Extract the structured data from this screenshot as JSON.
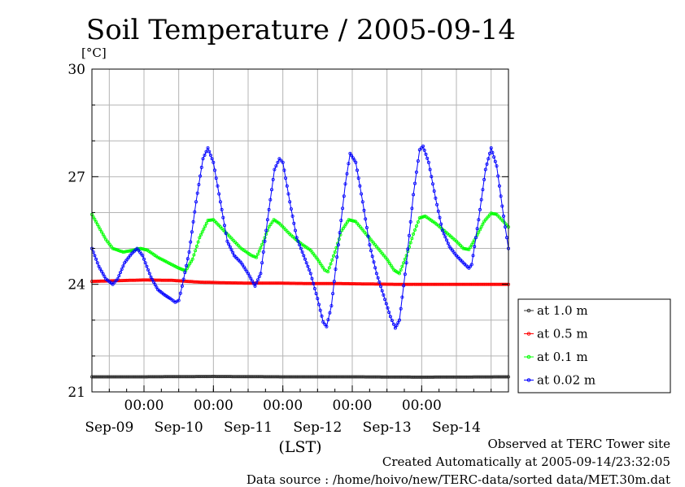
{
  "chart_data": {
    "type": "line",
    "title": "Soil Temperature / 2005-09-14",
    "ylabel": "[°C]",
    "xlabel": "(LST)",
    "ylim": [
      21,
      30
    ],
    "yticks": [
      "30",
      "27",
      "24",
      "21"
    ],
    "x_unit": "days since 2005-09-08 00:00 LST",
    "xlim": [
      0.25,
      6.25
    ],
    "x_time_ticks": [
      "00:00",
      "00:00",
      "00:00",
      "00:00",
      "00:00"
    ],
    "x_date_labels": [
      "Sep-09",
      "Sep-10",
      "Sep-11",
      "Sep-12",
      "Sep-13",
      "Sep-14"
    ],
    "grid": true,
    "legend_position": "right",
    "series": [
      {
        "name": "at 1.0 m",
        "color": "#333333",
        "points": [
          [
            0.25,
            21.42
          ],
          [
            1.0,
            21.42
          ],
          [
            2.0,
            21.43
          ],
          [
            3.0,
            21.42
          ],
          [
            4.0,
            21.42
          ],
          [
            5.0,
            21.41
          ],
          [
            6.25,
            21.42
          ]
        ]
      },
      {
        "name": "at 0.5 m",
        "color": "#ff0000",
        "points": [
          [
            0.25,
            24.08
          ],
          [
            0.6,
            24.1
          ],
          [
            1.0,
            24.12
          ],
          [
            1.4,
            24.11
          ],
          [
            1.8,
            24.06
          ],
          [
            2.2,
            24.04
          ],
          [
            2.6,
            24.03
          ],
          [
            3.0,
            24.03
          ],
          [
            3.4,
            24.02
          ],
          [
            3.8,
            24.02
          ],
          [
            4.2,
            24.01
          ],
          [
            4.6,
            24.0
          ],
          [
            5.0,
            24.0
          ],
          [
            5.4,
            24.0
          ],
          [
            5.8,
            24.0
          ],
          [
            6.25,
            24.0
          ]
        ]
      },
      {
        "name": "at 0.1 m",
        "color": "#00ff00",
        "points": [
          [
            0.25,
            25.95
          ],
          [
            0.35,
            25.6
          ],
          [
            0.45,
            25.25
          ],
          [
            0.55,
            25.0
          ],
          [
            0.7,
            24.9
          ],
          [
            0.85,
            24.95
          ],
          [
            0.95,
            25.0
          ],
          [
            1.05,
            24.95
          ],
          [
            1.2,
            24.75
          ],
          [
            1.35,
            24.6
          ],
          [
            1.5,
            24.45
          ],
          [
            1.6,
            24.38
          ],
          [
            1.7,
            24.7
          ],
          [
            1.8,
            25.3
          ],
          [
            1.92,
            25.78
          ],
          [
            2.0,
            25.8
          ],
          [
            2.1,
            25.6
          ],
          [
            2.25,
            25.3
          ],
          [
            2.4,
            25.0
          ],
          [
            2.55,
            24.8
          ],
          [
            2.62,
            24.75
          ],
          [
            2.72,
            25.2
          ],
          [
            2.8,
            25.6
          ],
          [
            2.87,
            25.8
          ],
          [
            2.95,
            25.7
          ],
          [
            3.1,
            25.4
          ],
          [
            3.25,
            25.15
          ],
          [
            3.4,
            24.95
          ],
          [
            3.5,
            24.7
          ],
          [
            3.6,
            24.4
          ],
          [
            3.65,
            24.35
          ],
          [
            3.75,
            24.9
          ],
          [
            3.85,
            25.5
          ],
          [
            3.95,
            25.8
          ],
          [
            4.05,
            25.75
          ],
          [
            4.2,
            25.4
          ],
          [
            4.35,
            25.05
          ],
          [
            4.5,
            24.7
          ],
          [
            4.6,
            24.4
          ],
          [
            4.68,
            24.3
          ],
          [
            4.78,
            24.8
          ],
          [
            4.88,
            25.4
          ],
          [
            4.97,
            25.85
          ],
          [
            5.05,
            25.9
          ],
          [
            5.2,
            25.7
          ],
          [
            5.35,
            25.45
          ],
          [
            5.5,
            25.2
          ],
          [
            5.6,
            25.0
          ],
          [
            5.68,
            24.97
          ],
          [
            5.78,
            25.3
          ],
          [
            5.9,
            25.75
          ],
          [
            6.0,
            25.98
          ],
          [
            6.08,
            25.95
          ],
          [
            6.25,
            25.6
          ]
        ]
      },
      {
        "name": "at 0.02 m",
        "color": "#0000ff",
        "points": [
          [
            0.25,
            25.0
          ],
          [
            0.35,
            24.5
          ],
          [
            0.45,
            24.15
          ],
          [
            0.55,
            24.0
          ],
          [
            0.62,
            24.15
          ],
          [
            0.72,
            24.6
          ],
          [
            0.82,
            24.85
          ],
          [
            0.9,
            25.0
          ],
          [
            0.98,
            24.8
          ],
          [
            1.1,
            24.2
          ],
          [
            1.2,
            23.85
          ],
          [
            1.3,
            23.7
          ],
          [
            1.38,
            23.6
          ],
          [
            1.45,
            23.5
          ],
          [
            1.5,
            23.55
          ],
          [
            1.55,
            23.95
          ],
          [
            1.65,
            24.9
          ],
          [
            1.75,
            26.3
          ],
          [
            1.85,
            27.5
          ],
          [
            1.92,
            27.8
          ],
          [
            2.0,
            27.4
          ],
          [
            2.1,
            26.3
          ],
          [
            2.2,
            25.2
          ],
          [
            2.3,
            24.8
          ],
          [
            2.4,
            24.6
          ],
          [
            2.5,
            24.3
          ],
          [
            2.6,
            23.95
          ],
          [
            2.68,
            24.3
          ],
          [
            2.78,
            25.8
          ],
          [
            2.88,
            27.2
          ],
          [
            2.95,
            27.5
          ],
          [
            3.0,
            27.4
          ],
          [
            3.1,
            26.3
          ],
          [
            3.2,
            25.3
          ],
          [
            3.3,
            24.8
          ],
          [
            3.4,
            24.3
          ],
          [
            3.5,
            23.6
          ],
          [
            3.58,
            22.95
          ],
          [
            3.63,
            22.82
          ],
          [
            3.7,
            23.4
          ],
          [
            3.8,
            25.1
          ],
          [
            3.9,
            26.8
          ],
          [
            3.97,
            27.65
          ],
          [
            4.05,
            27.4
          ],
          [
            4.15,
            26.3
          ],
          [
            4.25,
            25.1
          ],
          [
            4.35,
            24.3
          ],
          [
            4.45,
            23.7
          ],
          [
            4.55,
            23.1
          ],
          [
            4.62,
            22.78
          ],
          [
            4.68,
            23.0
          ],
          [
            4.78,
            24.6
          ],
          [
            4.88,
            26.5
          ],
          [
            4.97,
            27.75
          ],
          [
            5.02,
            27.85
          ],
          [
            5.1,
            27.4
          ],
          [
            5.2,
            26.4
          ],
          [
            5.3,
            25.5
          ],
          [
            5.4,
            25.05
          ],
          [
            5.5,
            24.8
          ],
          [
            5.6,
            24.6
          ],
          [
            5.68,
            24.45
          ],
          [
            5.72,
            24.55
          ],
          [
            5.82,
            25.8
          ],
          [
            5.92,
            27.2
          ],
          [
            6.0,
            27.8
          ],
          [
            6.08,
            27.3
          ],
          [
            6.18,
            25.9
          ],
          [
            6.25,
            25.0
          ]
        ]
      }
    ]
  },
  "footer": {
    "line1": "Observed at TERC Tower site",
    "line2": "Created Automatically at 2005-09-14/23:32:05",
    "line3": "Data source : /home/hoivo/new/TERC-data/sorted  data/MET.30m.dat"
  }
}
